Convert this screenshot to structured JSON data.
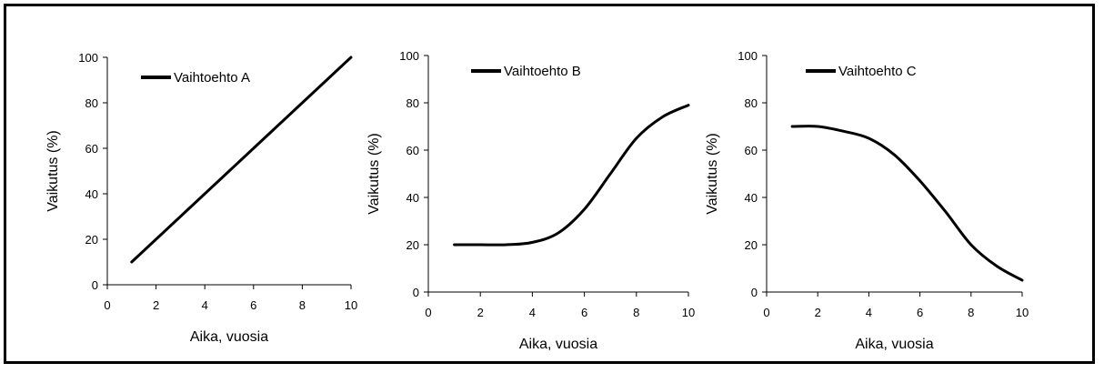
{
  "chart_data": [
    {
      "type": "line",
      "xlabel": "Aika, vuosia",
      "ylabel": "Vaikutus (%)",
      "xlim": [
        0,
        10
      ],
      "ylim": [
        0,
        100
      ],
      "xticks": [
        "0",
        "2",
        "4",
        "6",
        "8",
        "10"
      ],
      "yticks": [
        "0",
        "20",
        "40",
        "60",
        "80",
        "100"
      ],
      "legend_position": "top-left",
      "series": [
        {
          "name": "Vaihtoehto A",
          "color": "#000000",
          "x": [
            1,
            2,
            3,
            4,
            5,
            6,
            7,
            8,
            9,
            10
          ],
          "y": [
            10,
            20,
            30,
            40,
            50,
            60,
            70,
            80,
            90,
            100
          ]
        }
      ]
    },
    {
      "type": "line",
      "xlabel": "Aika, vuosia",
      "ylabel": "Vaikutus (%)",
      "xlim": [
        0,
        10
      ],
      "ylim": [
        0,
        100
      ],
      "xticks": [
        "0",
        "2",
        "4",
        "6",
        "8",
        "10"
      ],
      "yticks": [
        "0",
        "20",
        "40",
        "60",
        "80",
        "100"
      ],
      "legend_position": "top-left",
      "series": [
        {
          "name": "Vaihtoehto B",
          "color": "#000000",
          "x": [
            1,
            2,
            3,
            4,
            5,
            6,
            7,
            8,
            9,
            10
          ],
          "y": [
            20,
            20,
            20,
            21,
            25,
            35,
            50,
            65,
            74,
            79
          ]
        }
      ]
    },
    {
      "type": "line",
      "xlabel": "Aika, vuosia",
      "ylabel": "Vaikutus (%)",
      "xlim": [
        0,
        10
      ],
      "ylim": [
        0,
        100
      ],
      "xticks": [
        "0",
        "2",
        "4",
        "6",
        "8",
        "10"
      ],
      "yticks": [
        "0",
        "20",
        "40",
        "60",
        "80",
        "100"
      ],
      "legend_position": "top-left",
      "series": [
        {
          "name": "Vaihtoehto C",
          "color": "#000000",
          "x": [
            1,
            2,
            3,
            4,
            5,
            6,
            7,
            8,
            9,
            10
          ],
          "y": [
            70,
            70,
            68,
            65,
            58,
            47,
            34,
            20,
            11,
            5
          ]
        }
      ]
    }
  ]
}
